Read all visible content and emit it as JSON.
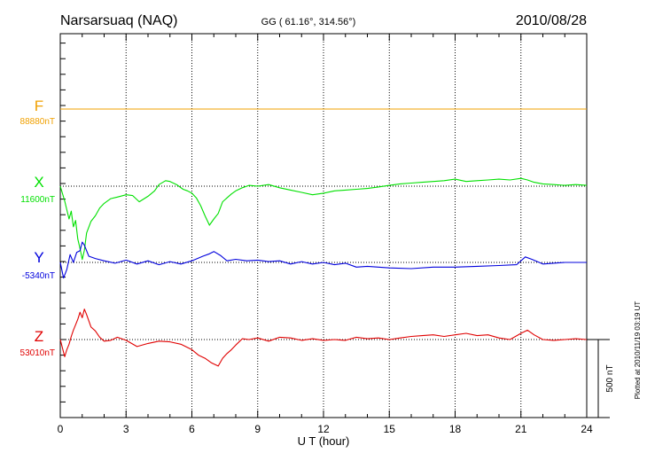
{
  "header": {
    "station": "Narsarsuaq (NAQ)",
    "coords": "GG ( 61.16°, 314.56°)",
    "date": "2010/08/28"
  },
  "plotted_note": "Plotted at 2010/11/19 03:19 UT",
  "colors": {
    "F": "#f0a000",
    "X": "#00e000",
    "Y": "#0000dd",
    "Z": "#e00000"
  },
  "chart_data": {
    "type": "line",
    "title": "Narsarsuaq (NAQ)",
    "xlabel": "U T (hour)",
    "ylabel": "",
    "xlim": [
      0,
      24
    ],
    "x_ticks": [
      0,
      3,
      6,
      9,
      12,
      15,
      18,
      21,
      24
    ],
    "x_tick_labels": [
      "0",
      "3",
      "6",
      "9",
      "12",
      "15",
      "18",
      "21",
      "24"
    ],
    "grid": "vertical dotted at 3-hour intervals",
    "scale_bar": {
      "label": "500 nT",
      "value_nT": 500
    },
    "series": [
      {
        "key": "F",
        "name": "F",
        "baseline_label": "88880nT",
        "baseline_nT": 88880,
        "x": [
          0,
          24
        ],
        "values": [
          0,
          0
        ]
      },
      {
        "key": "X",
        "name": "X",
        "baseline_label": "11600nT",
        "baseline_nT": 11600,
        "x": [
          0,
          0.2,
          0.4,
          0.5,
          0.6,
          0.7,
          0.8,
          0.9,
          1.0,
          1.1,
          1.2,
          1.4,
          1.6,
          1.8,
          2.0,
          2.3,
          2.6,
          3.0,
          3.3,
          3.6,
          4.0,
          4.3,
          4.5,
          4.8,
          5.0,
          5.3,
          5.6,
          5.8,
          6.0,
          6.2,
          6.4,
          6.6,
          6.8,
          7.0,
          7.2,
          7.4,
          7.6,
          7.8,
          8.0,
          8.3,
          8.6,
          9.0,
          9.5,
          10.0,
          10.5,
          11.0,
          11.5,
          12.0,
          12.5,
          13.0,
          13.5,
          14.0,
          14.5,
          15.0,
          15.5,
          16.0,
          16.5,
          17.0,
          17.5,
          18.0,
          18.5,
          19.0,
          19.5,
          20.0,
          20.5,
          21.0,
          21.3,
          21.6,
          22.0,
          22.5,
          23.0,
          23.5,
          24.0
        ],
        "values": [
          0,
          -95,
          -210,
          -160,
          -260,
          -220,
          -340,
          -400,
          -470,
          -410,
          -300,
          -225,
          -190,
          -140,
          -110,
          -80,
          -70,
          -55,
          -60,
          -100,
          -65,
          -30,
          10,
          35,
          30,
          10,
          -20,
          -30,
          -45,
          -75,
          -125,
          -190,
          -250,
          -210,
          -175,
          -100,
          -75,
          -50,
          -30,
          -10,
          5,
          0,
          10,
          -10,
          -25,
          -40,
          -55,
          -45,
          -30,
          -25,
          -20,
          -15,
          -5,
          5,
          15,
          20,
          25,
          30,
          35,
          45,
          30,
          35,
          40,
          45,
          40,
          50,
          40,
          25,
          15,
          10,
          5,
          10,
          5
        ]
      },
      {
        "key": "Y",
        "name": "Y",
        "baseline_label": "-5340nT",
        "baseline_nT": -5340,
        "x": [
          0,
          0.15,
          0.3,
          0.45,
          0.6,
          0.75,
          0.9,
          1.0,
          1.1,
          1.3,
          1.6,
          2.0,
          2.5,
          3.0,
          3.5,
          4.0,
          4.5,
          5.0,
          5.5,
          6.0,
          6.5,
          6.8,
          7.0,
          7.3,
          7.6,
          8.0,
          8.5,
          9.0,
          9.5,
          10.0,
          10.5,
          11.0,
          11.5,
          12.0,
          12.5,
          13.0,
          13.5,
          14.0,
          15.0,
          16.0,
          17.0,
          18.0,
          19.0,
          20.0,
          20.8,
          21.2,
          21.5,
          22.0,
          23.0,
          24.0
        ],
        "values": [
          0,
          -100,
          -45,
          50,
          0,
          65,
          75,
          130,
          110,
          40,
          25,
          10,
          -5,
          15,
          -10,
          10,
          -15,
          5,
          -10,
          10,
          40,
          55,
          70,
          45,
          10,
          20,
          10,
          15,
          5,
          10,
          -10,
          5,
          -10,
          0,
          -15,
          -5,
          -30,
          -25,
          -35,
          -40,
          -30,
          -30,
          -25,
          -20,
          -15,
          35,
          20,
          -10,
          0,
          0
        ]
      },
      {
        "key": "Z",
        "name": "Z",
        "baseline_label": "53010nT",
        "baseline_nT": 53010,
        "x": [
          0,
          0.2,
          0.3,
          0.4,
          0.5,
          0.6,
          0.7,
          0.8,
          0.9,
          1.0,
          1.1,
          1.2,
          1.4,
          1.6,
          1.8,
          2.0,
          2.3,
          2.6,
          3.0,
          3.5,
          4.0,
          4.5,
          5.0,
          5.5,
          6.0,
          6.3,
          6.6,
          6.9,
          7.2,
          7.4,
          7.6,
          7.8,
          8.0,
          8.3,
          8.6,
          9.0,
          9.5,
          10.0,
          10.5,
          11.0,
          11.5,
          12.0,
          12.5,
          13.0,
          13.5,
          14.0,
          14.5,
          15.0,
          15.5,
          16.0,
          16.5,
          17.0,
          17.5,
          18.0,
          18.5,
          19.0,
          19.5,
          20.0,
          20.5,
          21.0,
          21.3,
          21.6,
          22.0,
          22.5,
          23.0,
          23.5,
          24.0
        ],
        "values": [
          0,
          -110,
          -65,
          -30,
          20,
          60,
          95,
          130,
          175,
          140,
          195,
          160,
          80,
          55,
          15,
          -10,
          -5,
          15,
          -5,
          -45,
          -25,
          -10,
          -15,
          -30,
          -65,
          -100,
          -120,
          -150,
          -170,
          -120,
          -90,
          -65,
          -35,
          5,
          0,
          10,
          -10,
          15,
          10,
          -5,
          5,
          -5,
          0,
          -5,
          15,
          5,
          10,
          0,
          10,
          20,
          25,
          30,
          20,
          30,
          40,
          25,
          30,
          10,
          0,
          40,
          60,
          30,
          0,
          -5,
          0,
          5,
          0
        ]
      }
    ]
  }
}
